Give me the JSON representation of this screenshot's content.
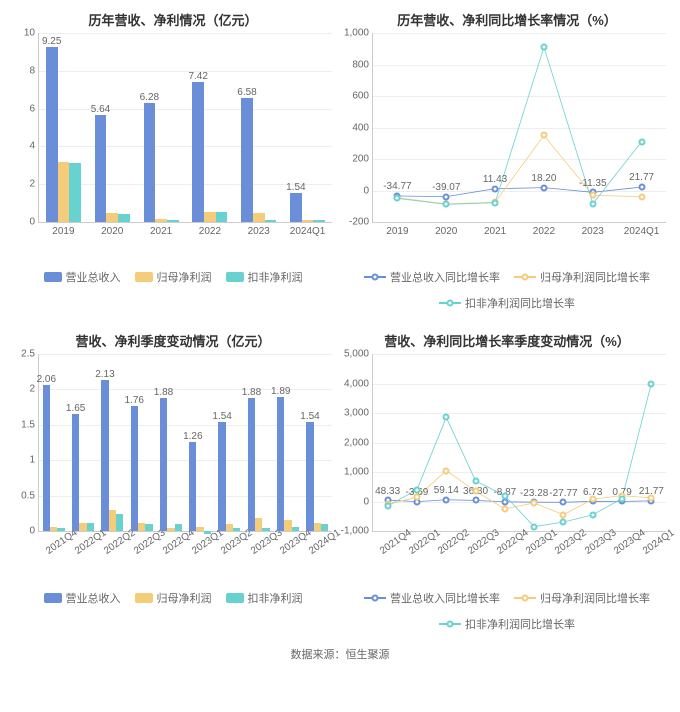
{
  "source_label": "数据来源：恒生聚源",
  "colors": {
    "revenue": "#6a8fd8",
    "net_profit": "#f5cd7a",
    "nonrec_profit": "#68d2d0",
    "grid": "#eeeeee",
    "axis": "#cccccc",
    "text": "#666666",
    "bg": "#ffffff"
  },
  "typography": {
    "title_fontsize": 13,
    "axis_fontsize": 10,
    "legend_fontsize": 11
  },
  "charts": {
    "tl": {
      "type": "bar",
      "title": "历年营收、净利情况（亿元）",
      "categories": [
        "2019",
        "2020",
        "2021",
        "2022",
        "2023",
        "2024Q1"
      ],
      "series": [
        {
          "key": "revenue",
          "label": "营业总收入",
          "color": "#6a8fd8",
          "values": [
            9.25,
            5.64,
            6.28,
            7.42,
            6.58,
            1.54
          ],
          "show_values": true
        },
        {
          "key": "net_profit",
          "label": "归母净利润",
          "color": "#f5cd7a",
          "values": [
            3.15,
            0.5,
            0.15,
            0.55,
            0.5,
            0.12
          ],
          "show_values": false
        },
        {
          "key": "nonrec_profit",
          "label": "扣非净利润",
          "color": "#68d2d0",
          "values": [
            3.1,
            0.45,
            0.12,
            0.55,
            0.12,
            0.1
          ],
          "show_values": false
        }
      ],
      "ylim": [
        0,
        10
      ],
      "ytick_step": 2,
      "bar_group_width": 0.72
    },
    "tr": {
      "type": "line",
      "title": "历年营收、净利同比增长率情况（%）",
      "categories": [
        "2019",
        "2020",
        "2021",
        "2022",
        "2023",
        "2024Q1"
      ],
      "series": [
        {
          "key": "revenue",
          "label": "营业总收入同比增长率",
          "color": "#6a8fd8",
          "values": [
            -34.77,
            -39.07,
            11.43,
            18.2,
            -11.35,
            21.77
          ],
          "show_values": true
        },
        {
          "key": "net_profit",
          "label": "归母净利润同比增长率",
          "color": "#f5cd7a",
          "values": [
            -45,
            -85,
            -75,
            350,
            -30,
            -40
          ],
          "show_values": false
        },
        {
          "key": "nonrec_profit",
          "label": "扣非净利润同比增长率",
          "color": "#68d2d0",
          "values": [
            -50,
            -88,
            -78,
            910,
            -85,
            310
          ],
          "show_values": false
        }
      ],
      "ylim": [
        -200,
        1000
      ],
      "ytick_step": 200
    },
    "bl": {
      "type": "bar",
      "title": "营收、净利季度变动情况（亿元）",
      "categories": [
        "2021Q4",
        "2022Q1",
        "2022Q2",
        "2022Q3",
        "2022Q4",
        "2023Q1",
        "2023Q2",
        "2023Q3",
        "2023Q4",
        "2024Q1"
      ],
      "rot_x": true,
      "series": [
        {
          "key": "revenue",
          "label": "营业总收入",
          "color": "#6a8fd8",
          "values": [
            2.06,
            1.65,
            2.13,
            1.76,
            1.88,
            1.26,
            1.54,
            1.88,
            1.89,
            1.54
          ],
          "show_values": true
        },
        {
          "key": "net_profit",
          "label": "归母净利润",
          "color": "#f5cd7a",
          "values": [
            0.06,
            0.12,
            0.3,
            0.12,
            0.04,
            0.06,
            0.1,
            0.18,
            0.16,
            0.12
          ],
          "show_values": false
        },
        {
          "key": "nonrec_profit",
          "label": "扣非净利润",
          "color": "#68d2d0",
          "values": [
            0.04,
            0.12,
            0.24,
            0.1,
            0.1,
            -0.04,
            0.04,
            0.04,
            0.06,
            0.1
          ],
          "show_values": false
        }
      ],
      "ylim": [
        0,
        2.5
      ],
      "ytick_step": 0.5,
      "bar_group_width": 0.75
    },
    "br": {
      "type": "line",
      "title": "营收、净利同比增长率季度变动情况（%）",
      "categories": [
        "2021Q4",
        "2022Q1",
        "2022Q2",
        "2022Q3",
        "2022Q4",
        "2023Q1",
        "2023Q2",
        "2023Q3",
        "2023Q4",
        "2024Q1"
      ],
      "rot_x": true,
      "series": [
        {
          "key": "revenue",
          "label": "营业总收入同比增长率",
          "color": "#6a8fd8",
          "values": [
            48.33,
            -3.69,
            59.14,
            36.8,
            -8.87,
            -23.28,
            -27.77,
            6.73,
            0.79,
            21.77
          ],
          "show_values": true
        },
        {
          "key": "net_profit",
          "label": "归母净利润同比增长率",
          "color": "#f5cd7a",
          "values": [
            -100,
            150,
            1050,
            350,
            -250,
            -50,
            -450,
            80,
            200,
            120
          ],
          "show_values": false
        },
        {
          "key": "nonrec_profit",
          "label": "扣非净利润同比增长率",
          "color": "#68d2d0",
          "values": [
            -150,
            400,
            2850,
            700,
            200,
            -850,
            -700,
            -450,
            100,
            4000
          ],
          "show_values": false
        }
      ],
      "ylim": [
        -1000,
        5000
      ],
      "ytick_step": 1000
    }
  }
}
